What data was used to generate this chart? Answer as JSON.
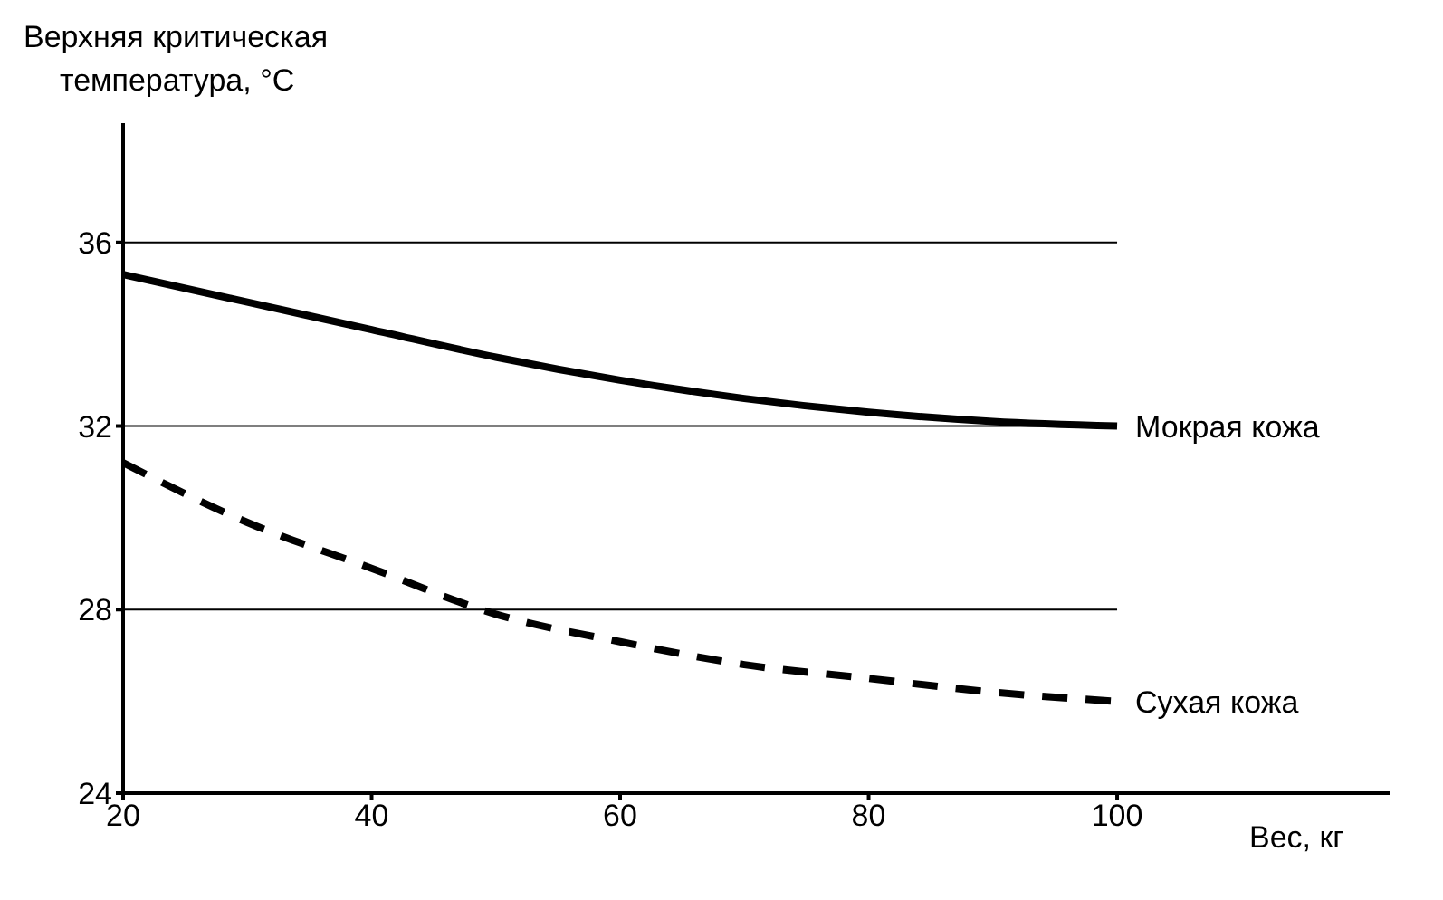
{
  "chart_data": {
    "type": "line",
    "ylabel": "Верхняя критическая\nтемпература, °C",
    "xlabel": "Вес, кг",
    "x": [
      20,
      30,
      40,
      50,
      60,
      70,
      80,
      90,
      100
    ],
    "series": [
      {
        "name": "Мокрая кожа",
        "color": "#000000",
        "line_style": "solid",
        "values": [
          35.3,
          34.7,
          34.1,
          33.5,
          33.0,
          32.6,
          32.3,
          32.1,
          32.0
        ]
      },
      {
        "name": "Сухая кожа",
        "color": "#000000",
        "line_style": "dashed",
        "values": [
          31.2,
          29.9,
          28.9,
          27.9,
          27.3,
          26.8,
          26.5,
          26.2,
          26.0
        ]
      }
    ],
    "xlim": [
      20,
      122
    ],
    "xticks": [
      20,
      40,
      60,
      80,
      100
    ],
    "ylim": [
      24,
      38.6
    ],
    "yticks": [
      24,
      28,
      32,
      36
    ],
    "grid": "y",
    "marker": "none",
    "legend": false
  }
}
